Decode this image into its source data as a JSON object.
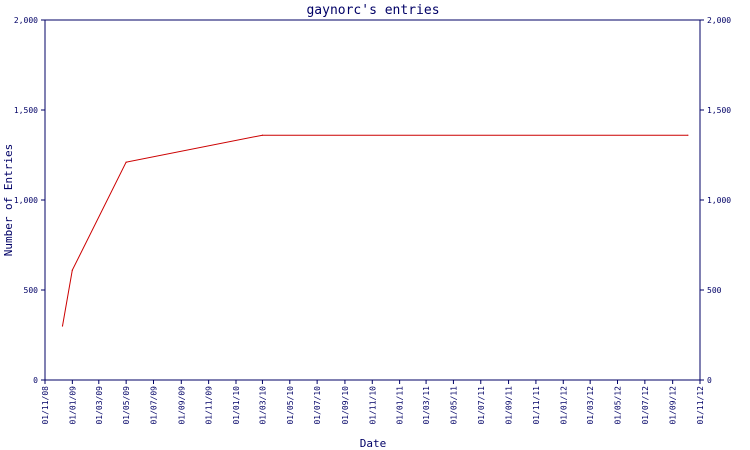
{
  "colors": {
    "axis": "#000066",
    "text": "#000066",
    "line": "#cc0000",
    "background": "#ffffff"
  },
  "chart_data": {
    "type": "line",
    "title": "gaynorc's entries",
    "xlabel": "Date",
    "ylabel": "Number of Entries",
    "grid": false,
    "legend": "none",
    "ylim": [
      0,
      2000
    ],
    "xlim": [
      "2008-11-01",
      "2012-11-01"
    ],
    "yticks": [
      0,
      500,
      1000,
      1500,
      2000
    ],
    "ytick_labels": [
      "0",
      "500",
      "1,000",
      "1,500",
      "2,000"
    ],
    "xtick_dates": [
      "2008-11-01",
      "2009-01-01",
      "2009-03-01",
      "2009-05-01",
      "2009-07-01",
      "2009-09-01",
      "2009-11-01",
      "2010-01-01",
      "2010-03-01",
      "2010-05-01",
      "2010-07-01",
      "2010-09-01",
      "2010-11-01",
      "2011-01-01",
      "2011-03-01",
      "2011-05-01",
      "2011-07-01",
      "2011-09-01",
      "2011-11-01",
      "2012-01-01",
      "2012-03-01",
      "2012-05-01",
      "2012-07-01",
      "2012-09-01",
      "2012-11-01"
    ],
    "xtick_labels": [
      "01/11/08",
      "01/01/09",
      "01/03/09",
      "01/05/09",
      "01/07/09",
      "01/09/09",
      "01/11/09",
      "01/01/10",
      "01/03/10",
      "01/05/10",
      "01/07/10",
      "01/09/10",
      "01/11/10",
      "01/01/11",
      "01/03/11",
      "01/05/11",
      "01/07/11",
      "01/09/11",
      "01/11/11",
      "01/01/12",
      "01/03/12",
      "01/05/12",
      "01/07/12",
      "01/09/12",
      "01/11/12"
    ],
    "series": [
      {
        "x": [
          "2008-12-10",
          "2009-01-01",
          "2009-05-01",
          "2010-03-01",
          "2012-10-05"
        ],
        "y": [
          300,
          610,
          1210,
          1360,
          1360
        ]
      }
    ]
  }
}
